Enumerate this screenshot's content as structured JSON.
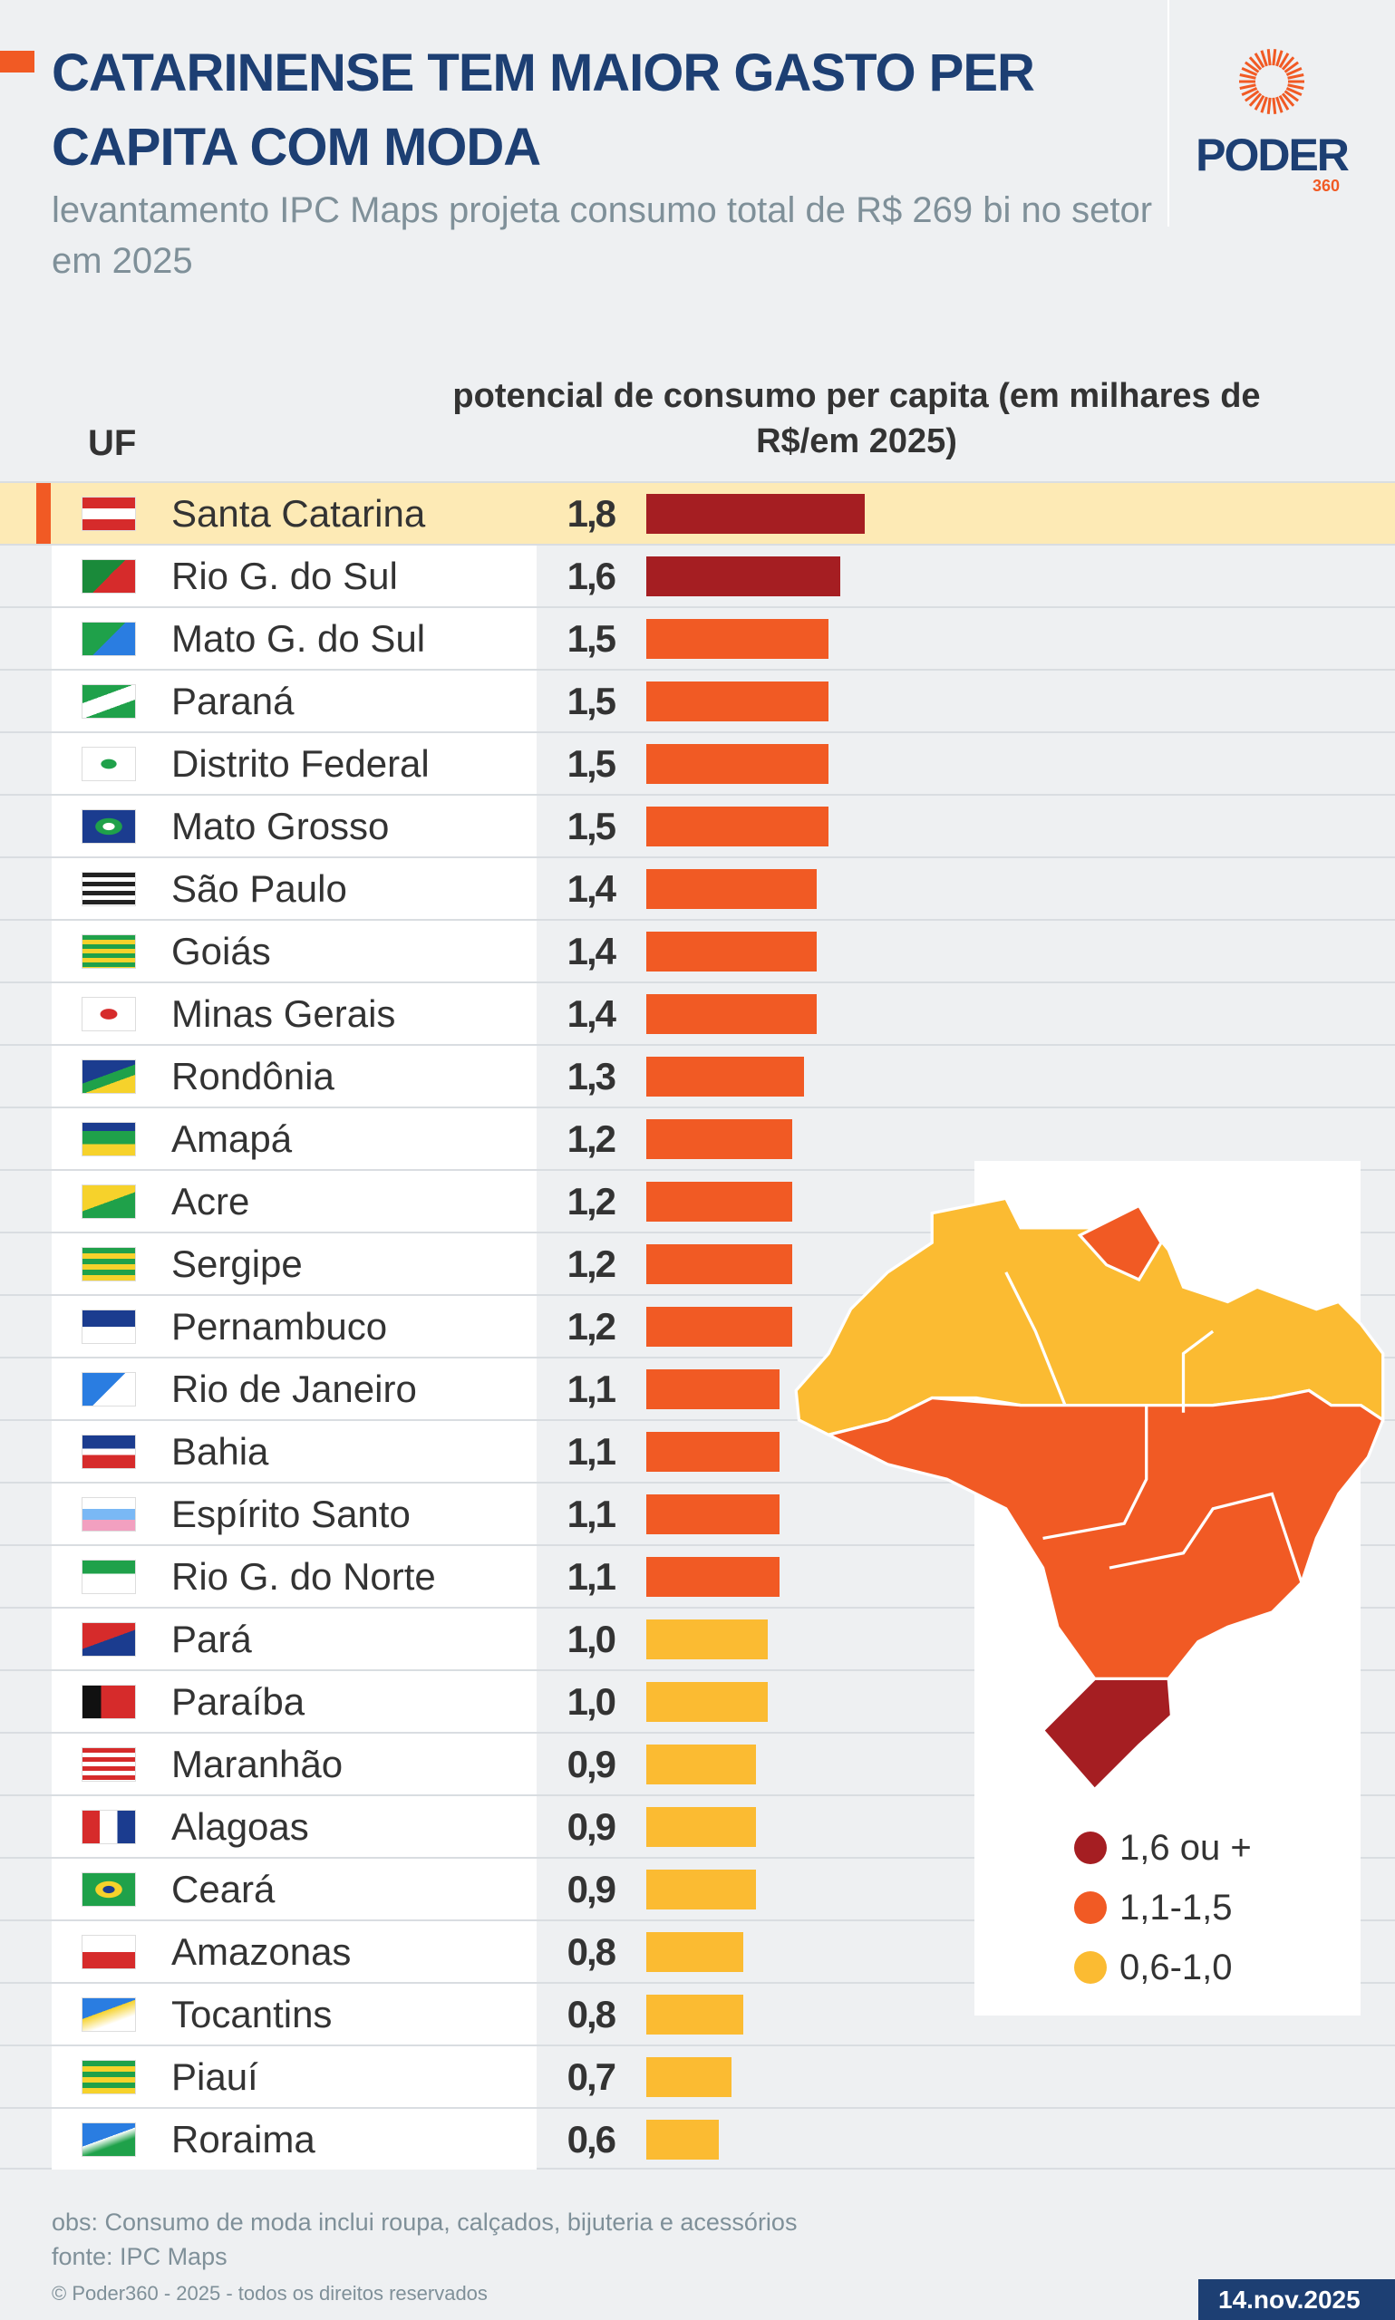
{
  "header": {
    "title": "CATARINENSE TEM MAIOR GASTO PER CAPITA COM MODA",
    "subtitle": "levantamento IPC Maps projeta consumo total de R$ 269 bi no setor em 2025"
  },
  "logo": {
    "word": "PODER",
    "num": "360"
  },
  "colors": {
    "high": "#a51e22",
    "mid": "#f15a24",
    "low": "#fbbb32",
    "title": "#1d3f73"
  },
  "chart_data": {
    "type": "bar",
    "title": "potencial de consumo per capita (em milhares de R$/em 2025)",
    "category_header": "UF",
    "value_header": "potencial de consumo per capita (em milhares de R$/em 2025)",
    "categories": [
      "Santa Catarina",
      "Rio G. do Sul",
      "Mato G. do Sul",
      "Paraná",
      "Distrito Federal",
      "Mato Grosso",
      "São Paulo",
      "Goiás",
      "Minas Gerais",
      "Rondônia",
      "Amapá",
      "Acre",
      "Sergipe",
      "Pernambuco",
      "Rio de Janeiro",
      "Bahia",
      "Espírito Santo",
      "Rio G. do Norte",
      "Pará",
      "Paraíba",
      "Maranhão",
      "Alagoas",
      "Ceará",
      "Amazonas",
      "Tocantins",
      "Piauí",
      "Roraima"
    ],
    "values": [
      1.8,
      1.6,
      1.5,
      1.5,
      1.5,
      1.5,
      1.4,
      1.4,
      1.4,
      1.3,
      1.2,
      1.2,
      1.2,
      1.2,
      1.1,
      1.1,
      1.1,
      1.1,
      1.0,
      1.0,
      0.9,
      0.9,
      0.9,
      0.8,
      0.8,
      0.7,
      0.6
    ],
    "labels": [
      "1,8",
      "1,6",
      "1,5",
      "1,5",
      "1,5",
      "1,5",
      "1,4",
      "1,4",
      "1,4",
      "1,3",
      "1,2",
      "1,2",
      "1,2",
      "1,2",
      "1,1",
      "1,1",
      "1,1",
      "1,1",
      "1,0",
      "1,0",
      "0,9",
      "0,9",
      "0,9",
      "0,8",
      "0,8",
      "0,7",
      "0,6"
    ],
    "highlight": "Santa Catarina",
    "legend": [
      {
        "label": "1,6 ou +",
        "color": "#a51e22"
      },
      {
        "label": "1,1-1,5",
        "color": "#f15a24"
      },
      {
        "label": "0,6-1,0",
        "color": "#fbbb32"
      }
    ]
  },
  "footer": {
    "obs": "obs: Consumo de moda inclui roupa, calçados, bijuteria e acessórios",
    "source": "fonte: IPC Maps",
    "copyright": "© Poder360 - 2025 - todos os direitos reservados",
    "date": "14.nov.2025"
  }
}
